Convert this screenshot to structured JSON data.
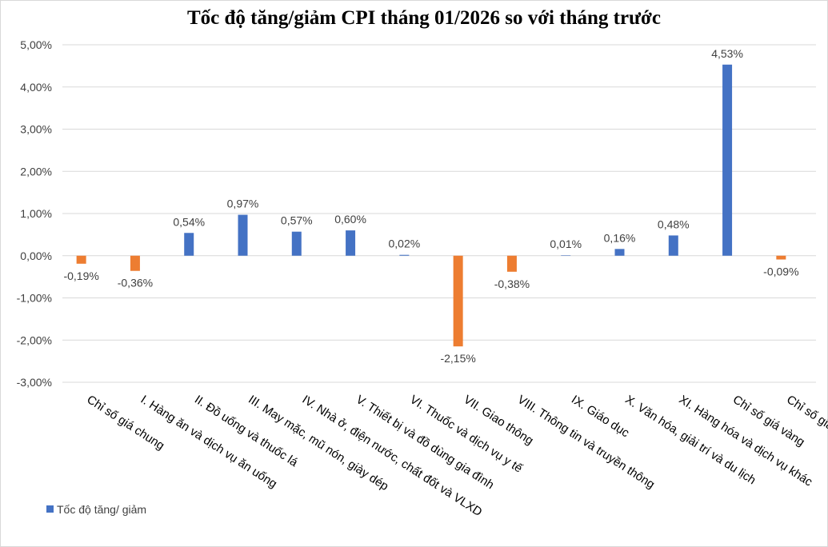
{
  "chart_data": {
    "type": "bar",
    "title": "Tốc độ tăng/giảm CPI tháng 01/2026 so với tháng trước",
    "categories": [
      "Chỉ số giá chung",
      "I. Hàng ăn và dịch vụ ăn uống",
      "II. Đồ uống và thuốc lá",
      "III. May mặc, mũ nón, giày dép",
      "IV. Nhà ở, điện nước, chất đốt và VLXD",
      "V. Thiết bị và đồ dùng gia đình",
      "VI. Thuốc và dịch vụ y tế",
      "VII. Giao thông",
      "VIII. Thông tin và truyền thông",
      "IX. Giáo dục",
      "X. Văn hóa, giải trí và du lịch",
      "XI. Hàng hóa và dịch vụ khác",
      "Chỉ số giá vàng",
      "Chỉ số giá đô la Mỹ"
    ],
    "series": [
      {
        "name": "Tốc độ tăng/ giảm",
        "values": [
          -0.19,
          -0.36,
          0.54,
          0.97,
          0.57,
          0.6,
          0.02,
          -2.15,
          -0.38,
          0.01,
          0.16,
          0.48,
          4.53,
          -0.09
        ]
      }
    ],
    "data_labels": [
      "-0,19%",
      "-0,36%",
      "0,54%",
      "0,97%",
      "0,57%",
      "0,60%",
      "0,02%",
      "-2,15%",
      "-0,38%",
      "0,01%",
      "0,16%",
      "0,48%",
      "4,53%",
      "-0,09%"
    ],
    "yticks": [
      "5,00%",
      "4,00%",
      "3,00%",
      "2,00%",
      "1,00%",
      "0,00%",
      "-1,00%",
      "-2,00%",
      "-3,00%"
    ],
    "ylim": [
      -3,
      5
    ],
    "grid": true,
    "legend_position": "bottom-left",
    "colors": {
      "positive": "#4472C4",
      "negative": "#ED7D31",
      "grid": "#D9D9D9"
    }
  }
}
